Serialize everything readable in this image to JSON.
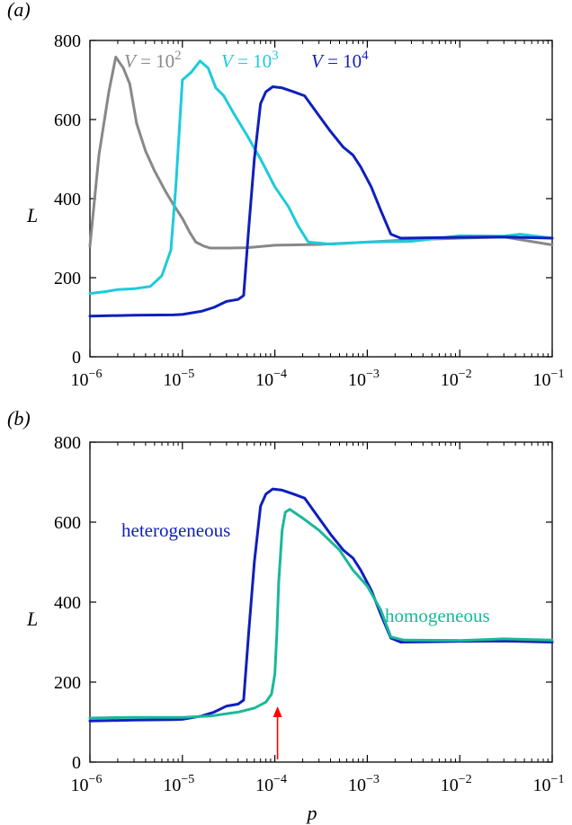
{
  "chart_data": [
    {
      "type": "line",
      "panel_label": "(a)",
      "ylabel": "L",
      "xlabel": "",
      "x_scale": "log",
      "xlim": [
        1e-06,
        0.1
      ],
      "ylim": [
        0,
        800
      ],
      "x_ticks": [
        {
          "base": "10",
          "exp": "−6"
        },
        {
          "base": "10",
          "exp": "−5"
        },
        {
          "base": "10",
          "exp": "−4"
        },
        {
          "base": "10",
          "exp": "−3"
        },
        {
          "base": "10",
          "exp": "−2"
        },
        {
          "base": "10",
          "exp": "−1"
        }
      ],
      "y_ticks": [
        "0",
        "200",
        "400",
        "600",
        "800"
      ],
      "y_tick_values": [
        0,
        200,
        400,
        600,
        800
      ],
      "series": [
        {
          "label_prefix": "V = 10",
          "label_exp": "2",
          "color": "#888888",
          "x": [
            1e-06,
            1.25e-06,
            1.6e-06,
            1.9e-06,
            2.3e-06,
            2.7e-06,
            3.2e-06,
            4e-06,
            5e-06,
            6.5e-06,
            8e-06,
            1e-05,
            1.2e-05,
            1.4e-05,
            1.7e-05,
            2e-05,
            3e-05,
            5e-05,
            0.0001,
            0.0003,
            0.001,
            0.003,
            0.01,
            0.03,
            0.1
          ],
          "y": [
            280,
            510,
            670,
            758,
            730,
            690,
            590,
            520,
            470,
            420,
            385,
            350,
            315,
            290,
            280,
            275,
            275,
            276,
            282,
            284,
            290,
            296,
            300,
            303,
            283
          ]
        },
        {
          "label_prefix": "V = 10",
          "label_exp": "3",
          "color": "#1ccbdc",
          "x": [
            1e-06,
            1.5e-06,
            2e-06,
            3e-06,
            4.5e-06,
            6e-06,
            7.5e-06,
            8.5e-06,
            1e-05,
            1.25e-05,
            1.55e-05,
            1.9e-05,
            2.3e-05,
            2.8e-05,
            3.5e-05,
            5e-05,
            7e-05,
            0.0001,
            0.00014,
            0.00018,
            0.00023,
            0.0004,
            0.001,
            0.003,
            0.01,
            0.03,
            0.045,
            0.1
          ],
          "y": [
            160,
            165,
            170,
            172,
            178,
            205,
            270,
            430,
            700,
            720,
            748,
            730,
            680,
            660,
            620,
            560,
            500,
            430,
            380,
            330,
            290,
            285,
            290,
            292,
            306,
            305,
            310,
            300
          ]
        },
        {
          "label_prefix": "V = 10",
          "label_exp": "4",
          "color": "#0f1fbc",
          "x": [
            1e-06,
            3e-06,
            8e-06,
            1e-05,
            1.6e-05,
            2.2e-05,
            3e-05,
            4e-05,
            4.6e-05,
            5.2e-05,
            6e-05,
            7e-05,
            8e-05,
            9.5e-05,
            0.00012,
            0.00016,
            0.00021,
            0.0003,
            0.0004,
            0.00055,
            0.0007,
            0.00085,
            0.0011,
            0.0014,
            0.0018,
            0.0023,
            0.01,
            0.03,
            0.1
          ],
          "y": [
            103,
            105,
            106,
            107,
            115,
            125,
            140,
            145,
            155,
            320,
            500,
            640,
            670,
            683,
            680,
            670,
            660,
            610,
            570,
            530,
            510,
            480,
            430,
            370,
            310,
            300,
            302,
            303,
            300
          ]
        }
      ]
    },
    {
      "type": "line",
      "panel_label": "(b)",
      "ylabel": "L",
      "xlabel": "p",
      "x_scale": "log",
      "xlim": [
        1e-06,
        0.1
      ],
      "ylim": [
        0,
        800
      ],
      "x_ticks": [
        {
          "base": "10",
          "exp": "−6"
        },
        {
          "base": "10",
          "exp": "−5"
        },
        {
          "base": "10",
          "exp": "−4"
        },
        {
          "base": "10",
          "exp": "−3"
        },
        {
          "base": "10",
          "exp": "−2"
        },
        {
          "base": "10",
          "exp": "−1"
        }
      ],
      "y_ticks": [
        "0",
        "200",
        "400",
        "600",
        "800"
      ],
      "y_tick_values": [
        0,
        200,
        400,
        600,
        800
      ],
      "series": [
        {
          "label": "heterogeneous",
          "color": "#0f1fbc",
          "x": [
            1e-06,
            3e-06,
            8e-06,
            1e-05,
            1.6e-05,
            2.2e-05,
            3e-05,
            4e-05,
            4.6e-05,
            5.2e-05,
            6e-05,
            7e-05,
            8e-05,
            9.5e-05,
            0.00012,
            0.00016,
            0.00021,
            0.0003,
            0.0004,
            0.00055,
            0.0007,
            0.00085,
            0.0011,
            0.0014,
            0.0018,
            0.0023,
            0.01,
            0.03,
            0.1
          ],
          "y": [
            103,
            105,
            106,
            107,
            115,
            125,
            140,
            145,
            155,
            320,
            500,
            640,
            670,
            683,
            680,
            670,
            660,
            610,
            570,
            530,
            510,
            480,
            430,
            370,
            310,
            300,
            302,
            303,
            300
          ]
        },
        {
          "label": "homogeneous",
          "color": "#1ab899",
          "x": [
            1e-06,
            3e-06,
            1e-05,
            2e-05,
            4e-05,
            6e-05,
            8e-05,
            9.2e-05,
            0.0001,
            0.000105,
            0.00011,
            0.00012,
            0.00013,
            0.000145,
            0.0002,
            0.0003,
            0.0005,
            0.0007,
            0.001,
            0.0014,
            0.0018,
            0.0025,
            0.01,
            0.03,
            0.1
          ],
          "y": [
            110,
            112,
            112,
            115,
            125,
            135,
            150,
            170,
            220,
            320,
            450,
            580,
            625,
            632,
            610,
            580,
            530,
            480,
            440,
            380,
            313,
            305,
            304,
            308,
            305
          ]
        }
      ],
      "annotation_arrow": {
        "x": 0.0001,
        "color": "#ff0000"
      }
    }
  ]
}
